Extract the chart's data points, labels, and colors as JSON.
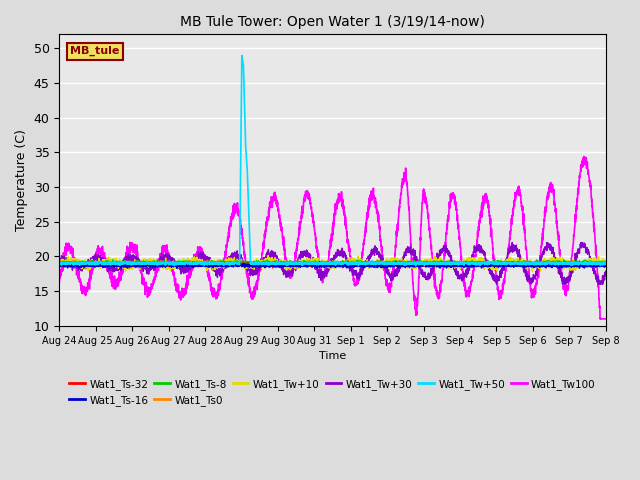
{
  "title": "MB Tule Tower: Open Water 1 (3/19/14-now)",
  "xlabel": "Time",
  "ylabel": "Temperature (C)",
  "ylim": [
    10,
    52
  ],
  "yticks": [
    10,
    15,
    20,
    25,
    30,
    35,
    40,
    45,
    50
  ],
  "background_color": "#dcdcdc",
  "plot_bg_color": "#e8e8e8",
  "legend_label": "MB_tule",
  "legend_box_color": "#f0e060",
  "legend_box_edge": "#8b0000",
  "legend_text_color": "#8b0000",
  "series": {
    "Wat1_Ts-32": {
      "color": "#ff0000",
      "lw": 1.0
    },
    "Wat1_Ts-16": {
      "color": "#0000cc",
      "lw": 1.0
    },
    "Wat1_Ts-8": {
      "color": "#00cc00",
      "lw": 1.0
    },
    "Wat1_Ts0": {
      "color": "#ff8800",
      "lw": 1.0
    },
    "Wat1_Tw+10": {
      "color": "#dddd00",
      "lw": 1.0
    },
    "Wat1_Tw+30": {
      "color": "#8800cc",
      "lw": 1.0
    },
    "Wat1_Tw+50": {
      "color": "#00ddff",
      "lw": 1.2
    },
    "Wat1_Tw100": {
      "color": "#ff00ff",
      "lw": 1.2
    }
  },
  "xticklabels": [
    "Aug 24",
    "Aug 25",
    "Aug 26",
    "Aug 27",
    "Aug 28",
    "Aug 29",
    "Aug 30",
    "Aug 31",
    "Sep 1",
    "Sep 2",
    "Sep 3",
    "Sep 4",
    "Sep 5",
    "Sep 6",
    "Sep 7",
    "Sep 8"
  ],
  "n_days": 15
}
